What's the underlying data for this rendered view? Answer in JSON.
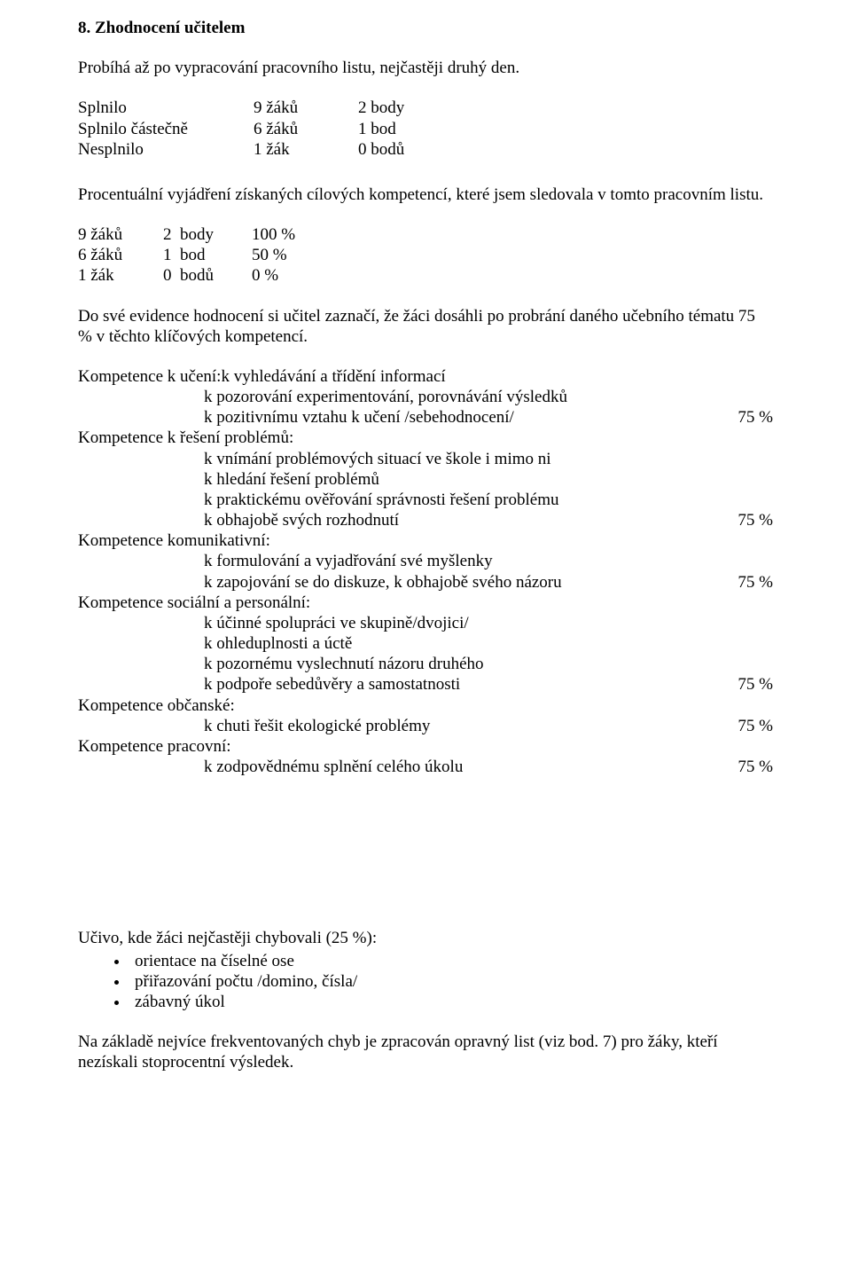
{
  "heading": "8. Zhodnocení učitelem",
  "intro": "Probíhá až po vypracování pracovního listu, nejčastěji druhý den.",
  "scoreTable": {
    "rows": [
      {
        "label": "Splnilo",
        "count": "9 žáků",
        "points": "2 body"
      },
      {
        "label": "Splnilo částečně",
        "count": "6 žáků",
        "points": "1 bod"
      },
      {
        "label": "Nesplnilo",
        "count": "1 žák",
        "points": "0 bodů"
      }
    ]
  },
  "percentIntro": "Procentuální vyjádření získaných cílových kompetencí, které jsem sledovala v tomto pracovním listu.",
  "percentTable": {
    "rows": [
      {
        "count": "9 žáků",
        "points": "2  body",
        "pct": "100 %"
      },
      {
        "count": "6 žáků",
        "points": "1  bod",
        "pct": "50 %"
      },
      {
        "count": "1 žák",
        "points": "0  bodů",
        "pct": "0 %"
      }
    ]
  },
  "evidencePara": "Do své evidence hodnocení si učitel zaznačí, že žáci dosáhli  po probrání daného učebního tématu 75 % v těchto klíčových kompetencí.",
  "competencies": [
    {
      "title": "Kompetence k učení:",
      "firstLine": "k vyhledávání a třídění informací",
      "lines": [
        {
          "text": "k pozorování experimentování, porovnávání výsledků",
          "pct": ""
        },
        {
          "text": "k pozitivnímu vztahu k učení /sebehodnocení/",
          "pct": "75 %"
        }
      ]
    },
    {
      "title": "Kompetence k řešení problémů:",
      "firstLine": "",
      "lines": [
        {
          "text": "k vnímání problémových situací ve škole i mimo ni",
          "pct": ""
        },
        {
          "text": "k hledání řešení problémů",
          "pct": ""
        },
        {
          "text": "k praktickému ověřování správnosti řešení problému",
          "pct": ""
        },
        {
          "text": "k obhajobě svých rozhodnutí",
          "pct": "75 %"
        }
      ]
    },
    {
      "title": "Kompetence komunikativní:",
      "firstLine": "",
      "lines": [
        {
          "text": "k formulování a vyjadřování své myšlenky",
          "pct": ""
        },
        {
          "text": "k zapojování se do diskuze, k obhajobě svého názoru",
          "pct": "75 %"
        }
      ]
    },
    {
      "title": "Kompetence sociální a personální:",
      "firstLine": "",
      "lines": [
        {
          "text": "k účinné spolupráci ve skupině/dvojici/",
          "pct": ""
        },
        {
          "text": "k ohleduplnosti a úctě",
          "pct": ""
        },
        {
          "text": "k pozornému vyslechnutí názoru druhého",
          "pct": ""
        },
        {
          "text": "k podpoře sebedůvěry a samostatnosti",
          "pct": "75 %"
        }
      ]
    },
    {
      "title": "Kompetence občanské:",
      "firstLine": "",
      "lines": [
        {
          "text": "k chuti řešit ekologické problémy",
          "pct": "75 %"
        }
      ]
    },
    {
      "title": "Kompetence pracovní:",
      "firstLine": "",
      "lines": [
        {
          "text": "k zodpovědnému splnění celého úkolu",
          "pct": "75 %"
        }
      ]
    }
  ],
  "errorsHeading": "Učivo, kde žáci nejčastěji chybovali (25 %):",
  "errorsBullets": [
    "orientace na číselné ose",
    "přiřazování počtu    /domino, čísla/",
    "zábavný úkol"
  ],
  "closingPara": "Na základě nejvíce frekventovaných chyb je zpracován opravný list (viz bod. 7) pro žáky, kteří nezískali stoprocentní výsledek."
}
